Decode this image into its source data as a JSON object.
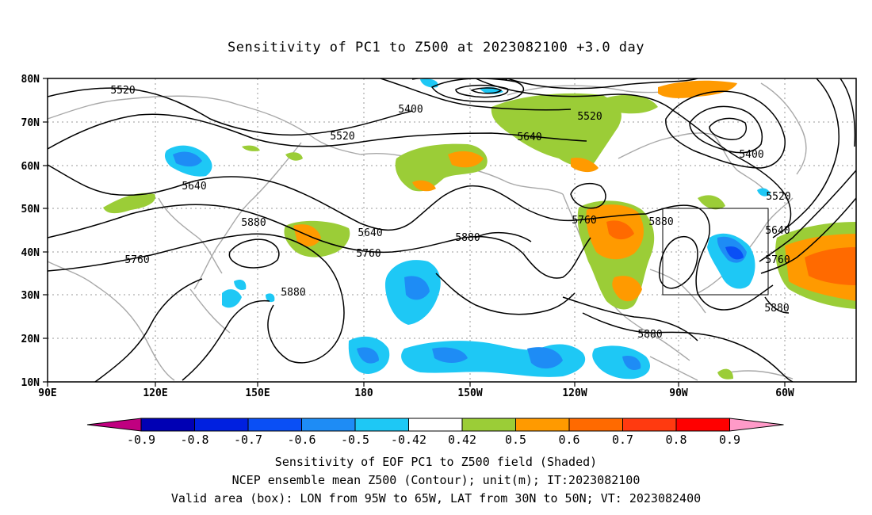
{
  "title": "Sensitivity of PC1 to Z500 at 2023082100 +3.0 day",
  "map": {
    "lat_ticks": [
      "80N",
      "70N",
      "60N",
      "50N",
      "40N",
      "30N",
      "20N",
      "10N"
    ],
    "lon_ticks": [
      "90E",
      "120E",
      "150E",
      "180",
      "150W",
      "120W",
      "90W",
      "60W"
    ],
    "contour_labels": [
      "5520",
      "5400",
      "5520",
      "5640",
      "5520",
      "5400",
      "5640",
      "5520",
      "5880",
      "5640",
      "5880",
      "5760",
      "5760",
      "5760",
      "5880",
      "5640",
      "5760",
      "5880",
      "5880",
      "5880"
    ],
    "valid_box": {
      "lon_min": -95,
      "lon_max": -65,
      "lat_min": 30,
      "lat_max": 50
    }
  },
  "colorbar": {
    "labels": [
      "-0.9",
      "-0.8",
      "-0.7",
      "-0.6",
      "-0.5",
      "-0.42",
      "0.42",
      "0.5",
      "0.6",
      "0.7",
      "0.8",
      "0.9"
    ],
    "colors": [
      "#c00080",
      "#0000b4",
      "#0020e0",
      "#0a4ff5",
      "#1e8cf5",
      "#1ec8f5",
      "#ffffff",
      "#9bcd37",
      "#ff9a00",
      "#ff6a00",
      "#ff3a10",
      "#ff0000",
      "#ff9ac8"
    ]
  },
  "captions": [
    "Sensitivity of EOF PC1 to Z500 field (Shaded)",
    "NCEP ensemble mean Z500 (Contour); unit(m); IT:2023082100",
    "Valid area (box): LON from 95W to 65W, LAT from 30N to 50N; VT: 2023082400"
  ]
}
